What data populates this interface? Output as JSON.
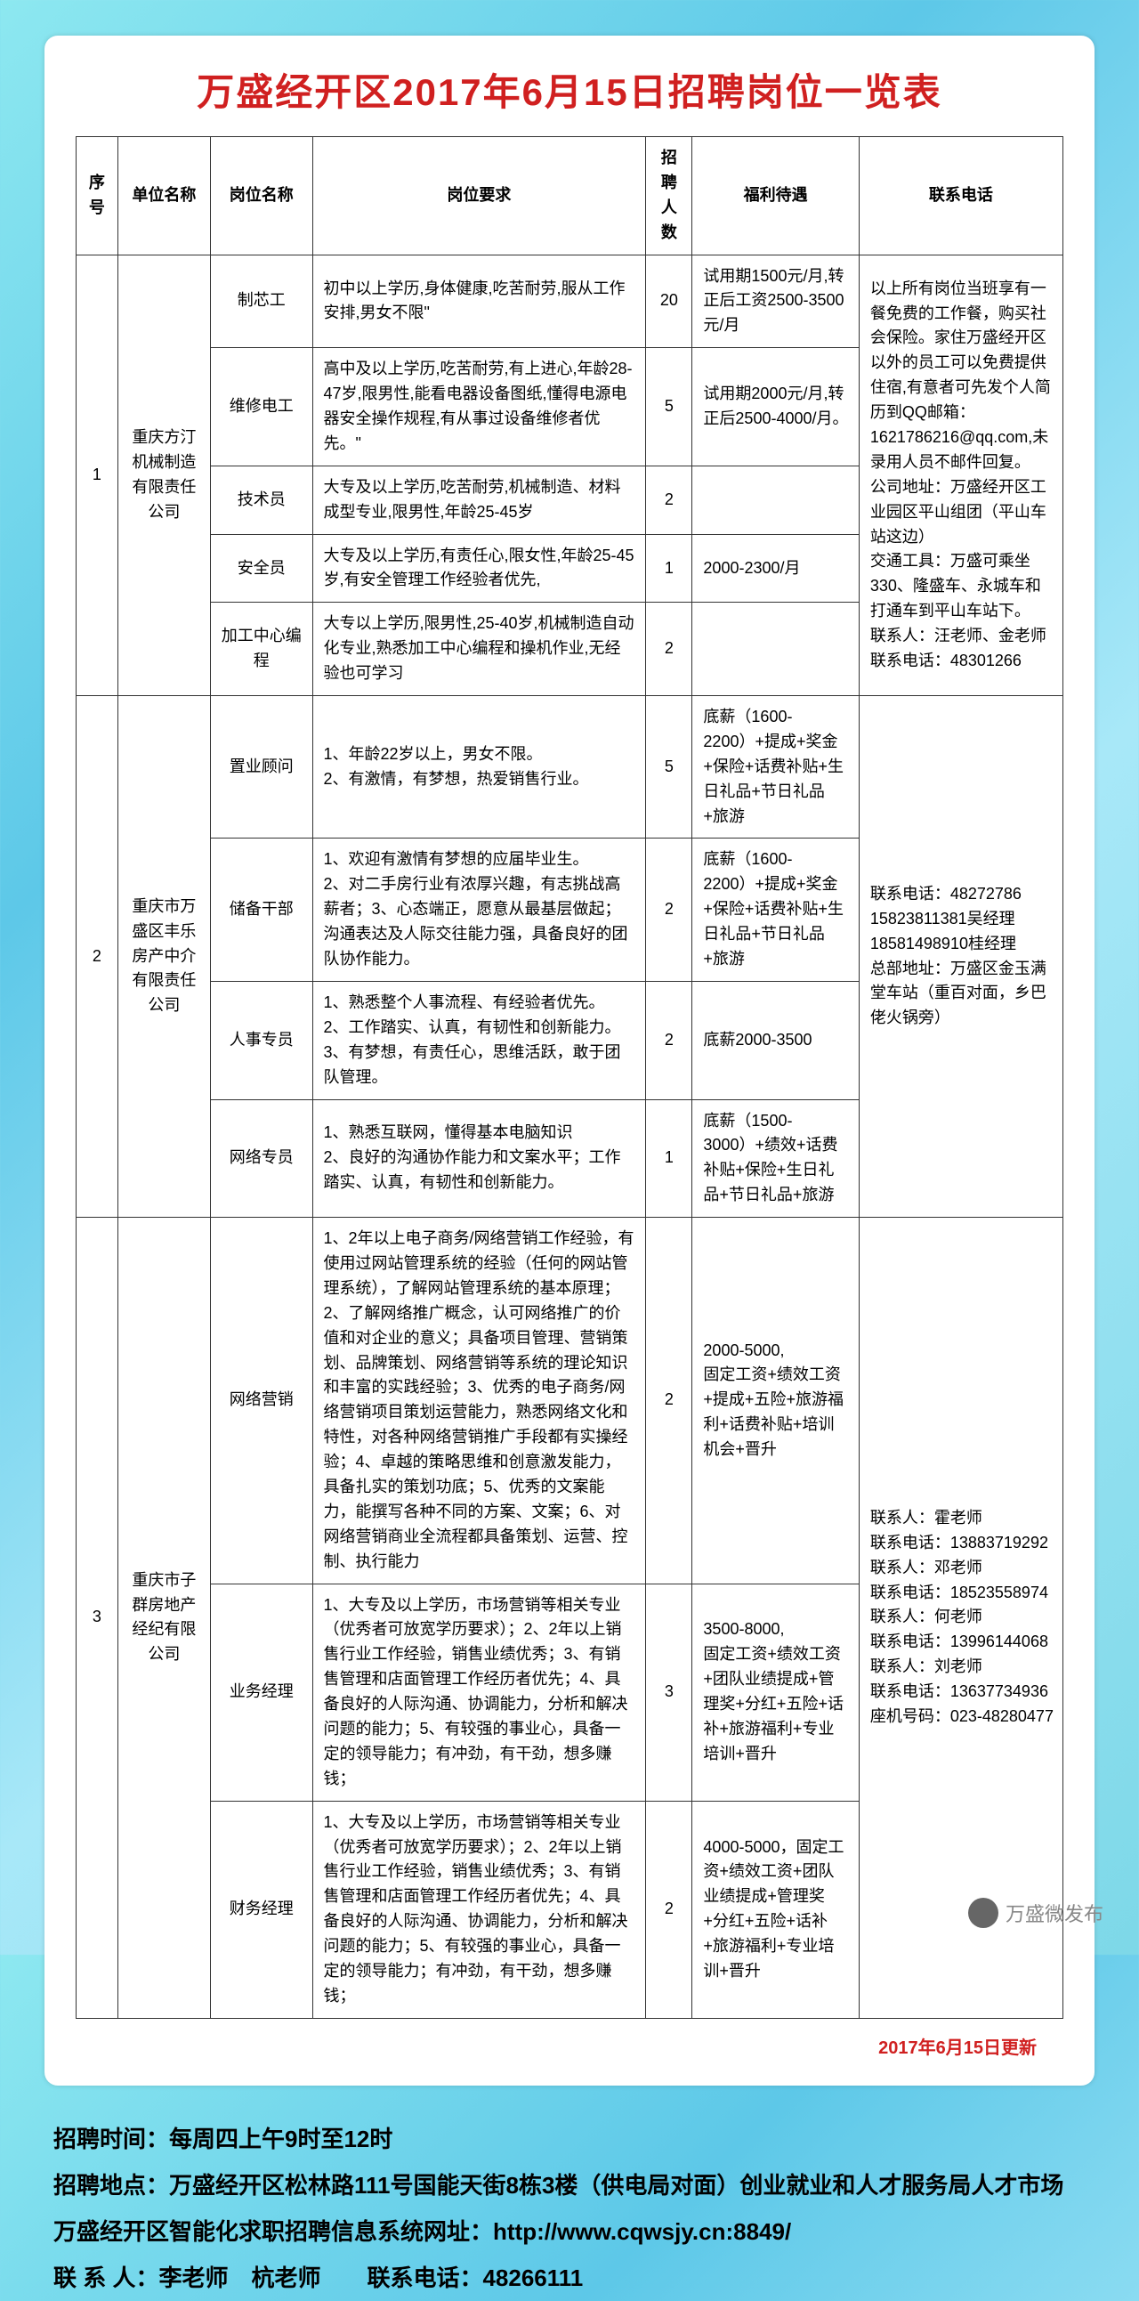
{
  "title": "万盛经开区2017年6月15日招聘岗位一览表",
  "headers": {
    "seq": "序号",
    "company": "单位名称",
    "position": "岗位名称",
    "requirements": "岗位要求",
    "count": "招聘人数",
    "benefits": "福利待遇",
    "contact": "联系电话"
  },
  "rows": [
    {
      "seq": "1",
      "company": "重庆方汀机械制造有限责任公司",
      "contact": "以上所有岗位当班享有一餐免费的工作餐，购买社会保险。家住万盛经开区以外的员工可以免费提供住宿,有意者可先发个人简历到QQ邮箱：1621786216@qq.com,未录用人员不邮件回复。\n公司地址：万盛经开区工业园区平山组团（平山车站这边）\n交通工具：万盛可乘坐330、隆盛车、永城车和打通车到平山车站下。\n联系人：汪老师、金老师　　联系电话：48301266",
      "positions": [
        {
          "name": "制芯工",
          "req": "初中以上学历,身体健康,吃苦耐劳,服从工作安排,男女不限\"",
          "count": "20",
          "benefit": "试用期1500元/月,转正后工资2500-3500元/月"
        },
        {
          "name": "维修电工",
          "req": "高中及以上学历,吃苦耐劳,有上进心,年龄28-47岁,限男性,能看电器设备图纸,懂得电源电器安全操作规程,有从事过设备维修者优先。\"",
          "count": "5",
          "benefit": "试用期2000元/月,转正后2500-4000/月。"
        },
        {
          "name": "技术员",
          "req": "大专及以上学历,吃苦耐劳,机械制造、材料成型专业,限男性,年龄25-45岁",
          "count": "2",
          "benefit": ""
        },
        {
          "name": "安全员",
          "req": "大专及以上学历,有责任心,限女性,年龄25-45岁,有安全管理工作经验者优先,",
          "count": "1",
          "benefit": "2000-2300/月"
        },
        {
          "name": "加工中心编程",
          "req": "大专以上学历,限男性,25-40岁,机械制造自动化专业,熟悉加工中心编程和操机作业,无经验也可学习",
          "count": "2",
          "benefit": ""
        }
      ]
    },
    {
      "seq": "2",
      "company": "重庆市万盛区丰乐房产中介有限责任公司",
      "contact": "联系电话：48272786\n15823811381吴经理\n18581498910桂经理\n总部地址：万盛区金玉满堂车站（重百对面，乡巴佬火锅旁）",
      "positions": [
        {
          "name": "置业顾问",
          "req": "1、年龄22岁以上，男女不限。\n2、有激情，有梦想，热爱销售行业。",
          "count": "5",
          "benefit": "底薪（1600-2200）+提成+奖金+保险+话费补贴+生日礼品+节日礼品+旅游"
        },
        {
          "name": "储备干部",
          "req": "1、欢迎有激情有梦想的应届毕业生。\n2、对二手房行业有浓厚兴趣，有志挑战高薪者；3、心态端正，愿意从最基层做起；沟通表达及人际交往能力强，具备良好的团队协作能力。",
          "count": "2",
          "benefit": "底薪（1600-2200）+提成+奖金+保险+话费补贴+生日礼品+节日礼品+旅游"
        },
        {
          "name": "人事专员",
          "req": "1、熟悉整个人事流程、有经验者优先。\n2、工作踏实、认真，有韧性和创新能力。\n3、有梦想，有责任心，思维活跃，敢于团队管理。",
          "count": "2",
          "benefit": "底薪2000-3500"
        },
        {
          "name": "网络专员",
          "req": "1、熟悉互联网，懂得基本电脑知识\n2、良好的沟通协作能力和文案水平；工作踏实、认真，有韧性和创新能力。",
          "count": "1",
          "benefit": "底薪（1500-3000）+绩效+话费补贴+保险+生日礼品+节日礼品+旅游"
        }
      ]
    },
    {
      "seq": "3",
      "company": "重庆市子群房地产经纪有限公司",
      "contact": "联系人：霍老师\n联系电话：13883719292\n联系人：邓老师\n联系电话：18523558974\n联系人：何老师\n联系电话：13996144068\n联系人：刘老师\n联系电话：13637734936\n座机号码：023-48280477",
      "positions": [
        {
          "name": "网络营销",
          "req": "1、2年以上电子商务/网络营销工作经验，有使用过网站管理系统的经验（任何的网站管理系统），了解网站管理系统的基本原理； 2、了解网络推广概念，认可网络推广的价值和对企业的意义；具备项目管理、营销策划、品牌策划、网络营销等系统的理论知识和丰富的实践经验；3、优秀的电子商务/网络营销项目策划运营能力，熟悉网络文化和特性，对各种网络营销推广手段都有实操经验；4、卓越的策略思维和创意激发能力，具备扎实的策划功底；5、优秀的文案能力，能撰写各种不同的方案、文案；6、对网络营销商业全流程都具备策划、运营、控制、执行能力",
          "count": "2",
          "benefit": "2000-5000,\n固定工资+绩效工资+提成+五险+旅游福利+话费补贴+培训机会+晋升"
        },
        {
          "name": "业务经理",
          "req": "1、大专及以上学历，市场营销等相关专业（优秀者可放宽学历要求）；2、2年以上销售行业工作经验，销售业绩优秀；3、有销售管理和店面管理工作经历者优先；4、具备良好的人际沟通、协调能力，分析和解决问题的能力；5、有较强的事业心，具备一定的领导能力；有冲劲，有干劲，想多赚钱；",
          "count": "3",
          "benefit": "3500-8000,\n固定工资+绩效工资+团队业绩提成+管理奖+分红+五险+话补+旅游福利+专业培训+晋升"
        },
        {
          "name": "财务经理",
          "req": "1、大专及以上学历，市场营销等相关专业（优秀者可放宽学历要求）；2、2年以上销售行业工作经验，销售业绩优秀；3、有销售管理和店面管理工作经历者优先；4、具备良好的人际沟通、协调能力，分析和解决问题的能力；5、有较强的事业心，具备一定的领导能力；有冲劲，有干劲，想多赚钱；",
          "count": "2",
          "benefit": "4000-5000，固定工资+绩效工资+团队业绩提成+管理奖+分红+五险+话补+旅游福利+专业培训+晋升"
        }
      ]
    }
  ],
  "update_note": "2017年6月15日更新",
  "footer": {
    "l1": "招聘时间：每周四上午9时至12时",
    "l2": "招聘地点：万盛经开区松林路111号国能天街8栋3楼（供电局对面）创业就业和人才服务局人才市场",
    "l3": "万盛经开区智能化求职招聘信息系统网址：http://www.cqwsjy.cn:8849/",
    "l4": "联 系 人：李老师　杭老师　　联系电话：48266111"
  },
  "wechat": "万盛微发布"
}
